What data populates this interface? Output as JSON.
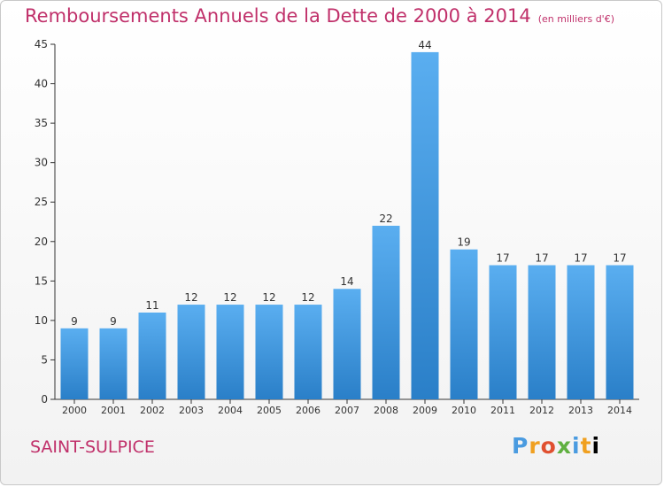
{
  "header": {
    "title": "Remboursements Annuels de la Dette de 2000 à 2014",
    "unit": "(en milliers d'€)"
  },
  "footer": {
    "city": "SAINT-SULPICE",
    "logo": "Proxiti"
  },
  "colors": {
    "bar_top": "#5aaef0",
    "bar_bottom": "#2a7fc8",
    "title": "#c0306a",
    "axis": "#333333"
  },
  "chart_data": {
    "type": "bar",
    "title": "Remboursements Annuels de la Dette de 2000 à 2014",
    "xlabel": "",
    "ylabel": "",
    "categories": [
      "2000",
      "2001",
      "2002",
      "2003",
      "2004",
      "2005",
      "2006",
      "2007",
      "2008",
      "2009",
      "2010",
      "2011",
      "2012",
      "2013",
      "2014"
    ],
    "values": [
      9,
      9,
      11,
      12,
      12,
      12,
      12,
      14,
      22,
      44,
      19,
      17,
      17,
      17,
      17
    ],
    "ylim": [
      0,
      45
    ],
    "yticks": [
      0,
      5,
      10,
      15,
      20,
      25,
      30,
      35,
      40,
      45
    ],
    "grid": false,
    "legend": "none"
  }
}
